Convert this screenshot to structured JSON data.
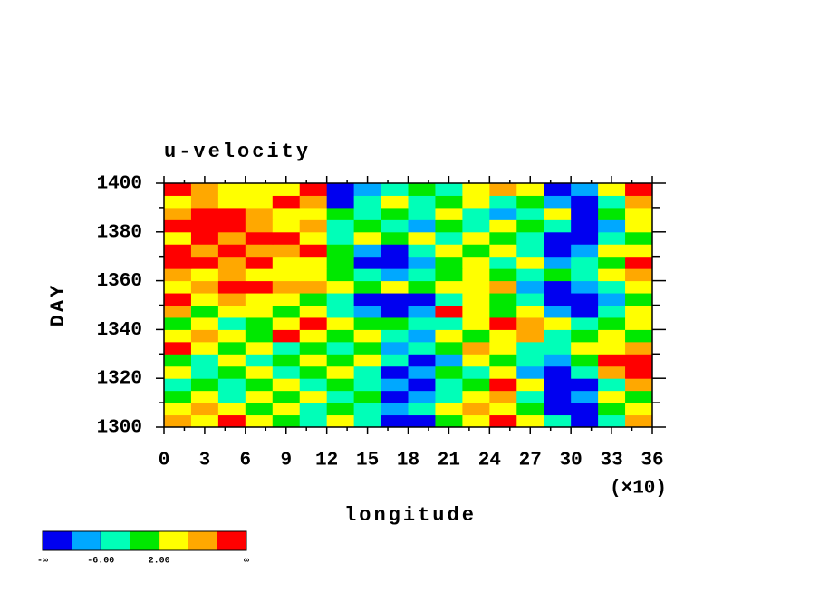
{
  "chart_data": {
    "type": "heatmap",
    "title": "u-velocity",
    "xlabel": "longitude",
    "ylabel": "DAY",
    "x_multiplier": "(×10)",
    "xlim": [
      0,
      36
    ],
    "xticks": [
      0,
      3,
      6,
      9,
      12,
      15,
      18,
      21,
      24,
      27,
      30,
      33,
      36
    ],
    "ylim": [
      1300,
      1400
    ],
    "yticks": [
      1300,
      1320,
      1340,
      1360,
      1380,
      1400
    ],
    "xbins": [
      0,
      2,
      4,
      6,
      8,
      10,
      12,
      14,
      16,
      18,
      20,
      22,
      24,
      26,
      28,
      30,
      32,
      34,
      36
    ],
    "ybins": [
      1300,
      1305,
      1310,
      1315,
      1320,
      1325,
      1330,
      1335,
      1340,
      1345,
      1350,
      1355,
      1360,
      1365,
      1370,
      1375,
      1380,
      1385,
      1390,
      1395,
      1400
    ],
    "levels": [
      -10,
      -6,
      -2,
      2,
      6,
      10
    ],
    "colors": [
      "#0000f0",
      "#00a8ff",
      "#00ffb8",
      "#00e800",
      "#ffff00",
      "#ffa800",
      "#ff0000"
    ],
    "colorbar": {
      "min_label": "-∞",
      "max_label": "∞",
      "ticks": [
        {
          "value": -6,
          "label": "-6.00"
        },
        {
          "value": 2,
          "label": "2.00"
        }
      ]
    },
    "z": [
      [
        8,
        4,
        12,
        4,
        0,
        -4,
        4,
        -4,
        -12,
        -12,
        0,
        4,
        12,
        4,
        -4,
        -12,
        -4,
        8
      ],
      [
        4,
        8,
        4,
        0,
        4,
        -4,
        0,
        -4,
        -8,
        -4,
        4,
        8,
        4,
        0,
        -12,
        -12,
        0,
        4
      ],
      [
        0,
        4,
        -4,
        4,
        0,
        4,
        -4,
        0,
        -12,
        -8,
        -4,
        4,
        8,
        -4,
        -12,
        -8,
        4,
        0
      ],
      [
        -4,
        0,
        -4,
        0,
        4,
        -4,
        0,
        -4,
        -8,
        -12,
        -4,
        0,
        12,
        4,
        -12,
        -12,
        -4,
        8
      ],
      [
        4,
        -4,
        0,
        4,
        -4,
        0,
        4,
        -4,
        -12,
        -8,
        0,
        -4,
        4,
        -8,
        -12,
        -4,
        8,
        12
      ],
      [
        0,
        -4,
        4,
        -4,
        0,
        4,
        0,
        4,
        -4,
        -12,
        -8,
        4,
        0,
        -4,
        -8,
        0,
        12,
        12
      ],
      [
        12,
        4,
        0,
        4,
        -4,
        0,
        -4,
        0,
        -8,
        -4,
        0,
        8,
        4,
        -4,
        -4,
        4,
        4,
        8
      ],
      [
        4,
        8,
        4,
        0,
        12,
        4,
        0,
        4,
        -4,
        -8,
        4,
        0,
        4,
        8,
        -4,
        0,
        4,
        0
      ],
      [
        0,
        4,
        -4,
        0,
        4,
        12,
        4,
        0,
        0,
        -4,
        -4,
        4,
        12,
        8,
        4,
        -4,
        0,
        4
      ],
      [
        8,
        0,
        4,
        4,
        0,
        4,
        -4,
        -8,
        -12,
        -8,
        12,
        4,
        0,
        4,
        -8,
        -12,
        -4,
        4
      ],
      [
        12,
        4,
        8,
        4,
        4,
        0,
        -4,
        -12,
        -12,
        -12,
        -4,
        4,
        0,
        -4,
        -12,
        -12,
        -8,
        0
      ],
      [
        4,
        8,
        12,
        12,
        8,
        8,
        4,
        0,
        4,
        0,
        4,
        4,
        8,
        -8,
        -12,
        -8,
        -4,
        4
      ],
      [
        8,
        4,
        8,
        4,
        4,
        4,
        0,
        -4,
        -8,
        -4,
        0,
        4,
        0,
        -4,
        0,
        -4,
        4,
        8
      ],
      [
        12,
        12,
        8,
        12,
        4,
        4,
        0,
        -12,
        -12,
        -8,
        0,
        4,
        -4,
        4,
        -8,
        -4,
        0,
        12
      ],
      [
        12,
        8,
        12,
        8,
        8,
        12,
        0,
        -8,
        -12,
        -4,
        4,
        0,
        4,
        -4,
        -12,
        -8,
        4,
        4
      ],
      [
        4,
        12,
        8,
        12,
        12,
        4,
        -4,
        4,
        0,
        4,
        -4,
        4,
        0,
        -4,
        -12,
        -12,
        -4,
        0
      ],
      [
        12,
        12,
        12,
        8,
        4,
        8,
        -4,
        0,
        -4,
        -8,
        0,
        -4,
        4,
        0,
        -4,
        -12,
        -8,
        4
      ],
      [
        8,
        12,
        12,
        8,
        4,
        4,
        0,
        -4,
        0,
        -4,
        4,
        -4,
        -8,
        -4,
        4,
        -12,
        0,
        4
      ],
      [
        4,
        8,
        4,
        4,
        12,
        8,
        -12,
        -4,
        4,
        -4,
        0,
        4,
        -4,
        0,
        -8,
        -12,
        -4,
        8
      ],
      [
        12,
        8,
        4,
        4,
        4,
        12,
        -12,
        -8,
        -4,
        0,
        -4,
        4,
        8,
        4,
        -12,
        -8,
        4,
        12
      ]
    ]
  }
}
